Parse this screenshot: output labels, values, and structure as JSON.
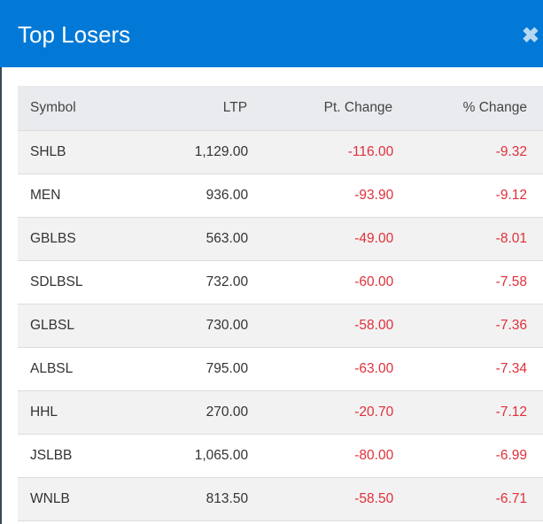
{
  "dialog": {
    "title": "Top Losers",
    "close_icon": "close-icon"
  },
  "colors": {
    "header": "#0279d6",
    "negative": "#e0303a"
  },
  "table": {
    "columns": [
      "Symbol",
      "LTP",
      "Pt. Change",
      "% Change"
    ],
    "rows": [
      [
        "SHLB",
        "1,129.00",
        "-116.00",
        "-9.32"
      ],
      [
        "MEN",
        "936.00",
        "-93.90",
        "-9.12"
      ],
      [
        "GBLBS",
        "563.00",
        "-49.00",
        "-8.01"
      ],
      [
        "SDLBSL",
        "732.00",
        "-60.00",
        "-7.58"
      ],
      [
        "GLBSL",
        "730.00",
        "-58.00",
        "-7.36"
      ],
      [
        "ALBSL",
        "795.00",
        "-63.00",
        "-7.34"
      ],
      [
        "HHL",
        "270.00",
        "-20.70",
        "-7.12"
      ],
      [
        "JSLBB",
        "1,065.00",
        "-80.00",
        "-6.99"
      ],
      [
        "WNLB",
        "813.50",
        "-58.50",
        "-6.71"
      ]
    ]
  }
}
